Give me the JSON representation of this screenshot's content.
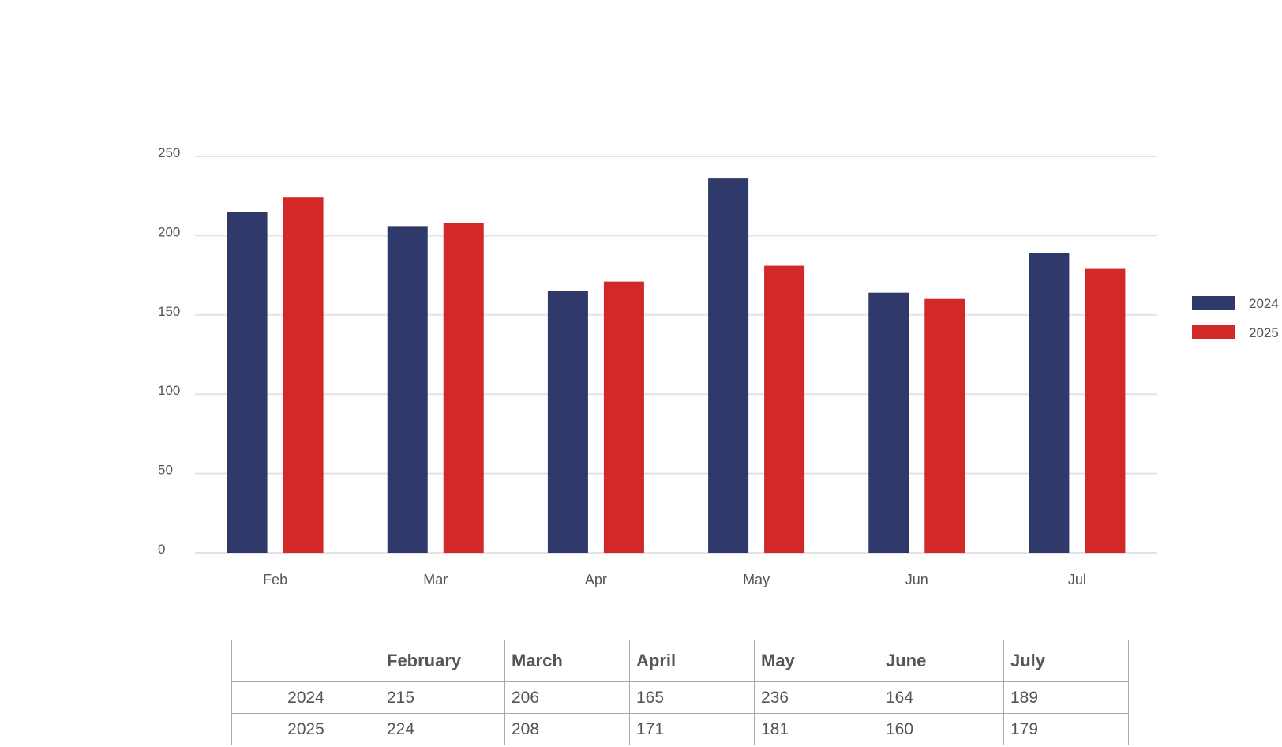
{
  "chart_data": {
    "type": "bar",
    "categories": [
      "Feb",
      "Mar",
      "Apr",
      "May",
      "Jun",
      "Jul"
    ],
    "series": [
      {
        "name": "2024",
        "values": [
          215,
          206,
          165,
          236,
          164,
          189
        ]
      },
      {
        "name": "2025",
        "values": [
          224,
          208,
          171,
          181,
          160,
          179
        ]
      }
    ],
    "ylim": [
      0,
      250
    ],
    "yticks": [
      "0",
      "50",
      "100",
      "150",
      "200",
      "250"
    ],
    "grid": true,
    "legend_position": "right",
    "colors": {
      "2024": "#2f3a6b",
      "2025": "#d22828"
    }
  },
  "table": {
    "headers": [
      "",
      "February",
      "March",
      "April",
      "May",
      "June",
      "July"
    ],
    "rows": [
      {
        "label": "2024",
        "cells": [
          "215",
          "206",
          "165",
          "236",
          "164",
          "189"
        ]
      },
      {
        "label": "2025",
        "cells": [
          "224",
          "208",
          "171",
          "181",
          "160",
          "179"
        ]
      }
    ]
  }
}
